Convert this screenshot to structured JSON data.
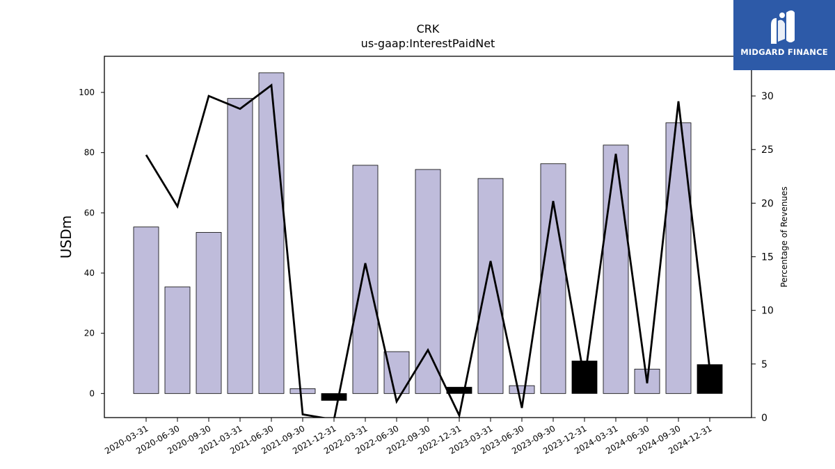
{
  "chart_data": {
    "type": "bar",
    "title": "CRK",
    "subtitle": "us-gaap:InterestPaidNet",
    "ylabel": "USDm",
    "y2label": "Percentage of Revenues",
    "ylim": [
      -8,
      112
    ],
    "y2lim": [
      0,
      33.7
    ],
    "yticks": [
      0,
      20,
      40,
      60,
      80,
      100
    ],
    "y2ticks": [
      0,
      5,
      10,
      15,
      20,
      25,
      30
    ],
    "grid": false,
    "categories": [
      "2020-03-31",
      "2020-06-30",
      "2020-09-30",
      "2021-03-31",
      "2021-06-30",
      "2021-09-30",
      "2021-12-31",
      "2022-03-31",
      "2022-06-30",
      "2022-09-30",
      "2022-12-31",
      "2023-03-31",
      "2023-06-30",
      "2023-09-30",
      "2023-12-31",
      "2024-03-31",
      "2024-06-30",
      "2024-09-30",
      "2024-12-31"
    ],
    "series": [
      {
        "kind": "bar",
        "axis": "left",
        "values": [
          55.3,
          35.4,
          53.5,
          98.0,
          106.5,
          1.6,
          -2.3,
          75.8,
          13.9,
          74.4,
          2.1,
          71.4,
          2.6,
          76.3,
          10.8,
          82.5,
          8.1,
          89.9,
          9.6
        ],
        "highlight": [
          false,
          false,
          false,
          false,
          false,
          false,
          true,
          false,
          false,
          false,
          true,
          false,
          false,
          false,
          true,
          false,
          false,
          false,
          true
        ]
      },
      {
        "kind": "line",
        "axis": "right",
        "values": [
          24.5,
          19.7,
          30.0,
          28.8,
          31.0,
          0.3,
          -0.2,
          14.4,
          1.5,
          6.3,
          0.2,
          14.6,
          0.9,
          20.2,
          3.5,
          24.6,
          3.2,
          29.5,
          4.5
        ]
      }
    ]
  },
  "colors": {
    "bar_fill": "#bfbcdb",
    "bar_highlight": "#000000",
    "line": "#000000",
    "logo_bg": "#2d5aa8"
  },
  "logo": {
    "text": "MIDGARD FINANCE",
    "icon": "midgard-logo-icon"
  }
}
